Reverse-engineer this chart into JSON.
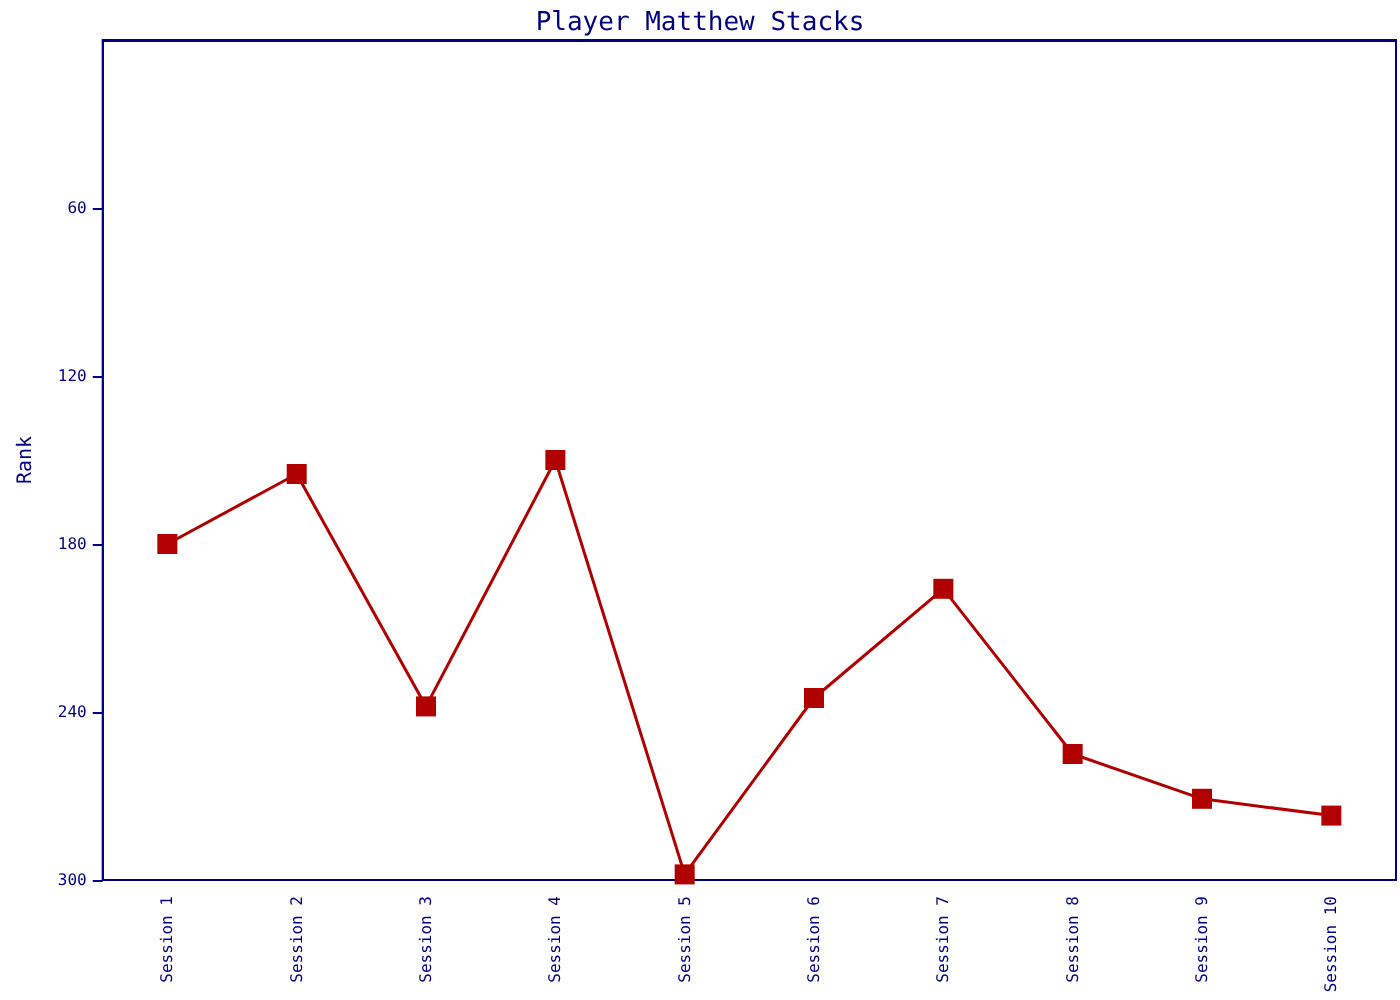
{
  "chart_data": {
    "type": "line",
    "title": "Player Matthew Stacks",
    "ylabel": "Rank",
    "categories": [
      "Session 1",
      "Session 2",
      "Session 3",
      "Session 4",
      "Session 5",
      "Session 6",
      "Session 7",
      "Session 8",
      "Session 9",
      "Session 10"
    ],
    "series": [
      {
        "color": "#b00000",
        "values": [
          180,
          155,
          238,
          150,
          298,
          235,
          196,
          255,
          271,
          277
        ]
      }
    ],
    "ylim": [
      300,
      0
    ],
    "yticks": [
      60,
      120,
      180,
      240,
      300
    ],
    "grid": false,
    "marker": "square",
    "line_style": "solid"
  }
}
